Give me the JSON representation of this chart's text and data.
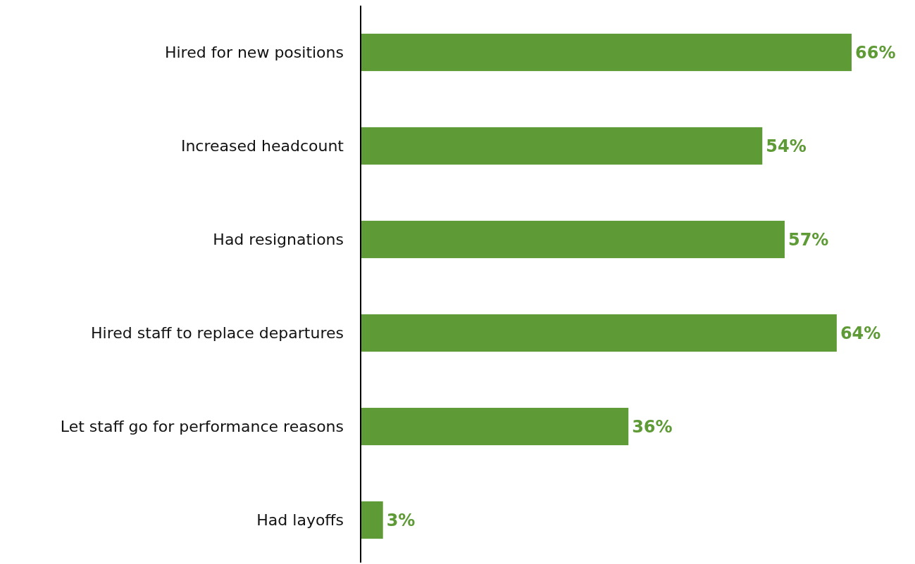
{
  "chart_data": {
    "type": "bar",
    "orientation": "horizontal",
    "categories": [
      "Hired for new positions",
      "Increased headcount",
      "Had resignations",
      "Hired staff to replace departures",
      "Let staff go for performance reasons",
      "Had layoffs"
    ],
    "values": [
      66,
      54,
      57,
      64,
      36,
      3
    ],
    "value_labels": [
      "66%",
      "54%",
      "57%",
      "64%",
      "36%",
      "3%"
    ],
    "color": "#5e9a35",
    "xlim": [
      0,
      66
    ],
    "tick_labels": "y"
  }
}
